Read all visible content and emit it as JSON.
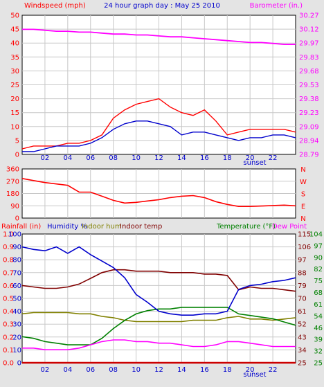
{
  "chart_data": [
    {
      "type": "line",
      "title": "24 hour graph day : May 25 2010",
      "ylabel": "Windspeed (mph)",
      "y2label": "Barometer (in.)",
      "ylim": [
        0,
        50
      ],
      "y_ticks": [
        "0",
        "5",
        "10",
        "15",
        "20",
        "25",
        "30",
        "35",
        "40",
        "45",
        "50"
      ],
      "y2lim": [
        28.79,
        30.27
      ],
      "y2_ticks": [
        "28.79",
        "28.94",
        "29.09",
        "29.23",
        "29.38",
        "29.53",
        "29.68",
        "29.83",
        "29.97",
        "30.12",
        "30.27"
      ],
      "x_ticks": [
        "02",
        "04",
        "06",
        "08",
        "10",
        "12",
        "14",
        "16",
        "18",
        "20",
        "22"
      ],
      "sunset_label": "sunset",
      "colors": {
        "gust": "#ff0000",
        "speed": "#0000cc",
        "barometer": "#ff00ff",
        "axis_left": "#ff0000",
        "axis_right": "#ff00ff"
      },
      "x": [
        0,
        1,
        2,
        3,
        4,
        5,
        6,
        7,
        8,
        9,
        10,
        11,
        12,
        13,
        14,
        15,
        16,
        17,
        18,
        19,
        20,
        21,
        22,
        23,
        24
      ],
      "series": [
        {
          "name": "gust",
          "values": [
            2,
            3,
            3,
            3,
            4,
            4,
            5,
            7,
            13,
            16,
            18,
            19,
            20,
            17,
            15,
            14,
            16,
            12,
            7,
            8,
            9,
            9,
            9,
            9,
            8
          ]
        },
        {
          "name": "speed",
          "values": [
            1,
            1,
            2,
            3,
            3,
            3,
            4,
            6,
            9,
            11,
            12,
            12,
            11,
            10,
            7,
            8,
            8,
            7,
            6,
            5,
            6,
            6,
            7,
            7,
            6
          ]
        },
        {
          "name": "barometer",
          "values": [
            30.12,
            30.12,
            30.11,
            30.1,
            30.1,
            30.09,
            30.09,
            30.08,
            30.07,
            30.07,
            30.06,
            30.06,
            30.05,
            30.04,
            30.04,
            30.03,
            30.02,
            30.01,
            30.0,
            29.99,
            29.98,
            29.98,
            29.97,
            29.96,
            29.96
          ]
        }
      ]
    },
    {
      "type": "line",
      "ylim": [
        0,
        360
      ],
      "y_ticks": [
        "0",
        "90",
        "180",
        "270",
        "360"
      ],
      "compass_labels": [
        "N",
        "W",
        "S",
        "E",
        "N"
      ],
      "colors": {
        "direction": "#ff0000"
      },
      "x": [
        0,
        1,
        2,
        3,
        4,
        5,
        6,
        7,
        8,
        9,
        10,
        11,
        12,
        13,
        14,
        15,
        16,
        17,
        18,
        19,
        20,
        21,
        22,
        23,
        24
      ],
      "series": [
        {
          "name": "direction",
          "values": [
            290,
            275,
            260,
            250,
            240,
            190,
            190,
            160,
            130,
            110,
            115,
            125,
            135,
            150,
            160,
            165,
            150,
            120,
            100,
            85,
            85,
            88,
            92,
            95,
            90
          ]
        }
      ]
    },
    {
      "type": "line",
      "legend_labels": {
        "rainfall": "Rainfall (in)",
        "humidity": "Humidity %",
        "indoor_hum": "Indoor hum",
        "indoor_temp": "Indoor temp",
        "temperature": "Temperature (°F)",
        "dew_point": "Dew Point"
      },
      "ylim_rain": [
        0,
        1
      ],
      "rain_ticks": [
        "0.0",
        "0.1",
        "0.2",
        "0.3",
        "0.4",
        "0.5",
        "0.6",
        "0.7",
        "0.8",
        "0.9",
        "1.0"
      ],
      "ylim_hum": [
        0,
        100
      ],
      "hum_ticks": [
        "0",
        "10",
        "20",
        "30",
        "40",
        "50",
        "60",
        "70",
        "80",
        "90",
        "100"
      ],
      "ylim_indoor_temp": [
        25,
        115
      ],
      "indoor_temp_ticks": [
        "25",
        "34",
        "43",
        "52",
        "61",
        "70",
        "79",
        "88",
        "97",
        "106",
        "115"
      ],
      "ylim_temp": [
        25,
        104
      ],
      "temp_ticks": [
        "25",
        "32",
        "39",
        "46",
        "54",
        "61",
        "68",
        "75",
        "82",
        "90",
        "97",
        "104"
      ],
      "x_ticks": [
        "02",
        "04",
        "06",
        "08",
        "10",
        "12",
        "14",
        "16",
        "18",
        "20",
        "22"
      ],
      "sunset_label": "sunset",
      "colors": {
        "rainfall": "#cc0000",
        "humidity": "#0000cc",
        "indoor_hum": "#808000",
        "indoor_temp": "#800000",
        "temperature": "#008000",
        "dew_point": "#ff00ff",
        "axis_left": "#ff0000",
        "axis_right_1": "#800000",
        "axis_right_2": "#008000"
      },
      "x": [
        0,
        1,
        2,
        3,
        4,
        5,
        6,
        7,
        8,
        9,
        10,
        11,
        12,
        13,
        14,
        15,
        16,
        17,
        18,
        19,
        20,
        21,
        22,
        23,
        24
      ],
      "series": [
        {
          "name": "Rainfall (in)",
          "values": [
            0,
            0,
            0,
            0,
            0,
            0,
            0,
            0,
            0,
            0,
            0,
            0,
            0,
            0,
            0,
            0,
            0,
            0,
            0,
            0,
            0,
            0,
            0,
            0,
            0
          ]
        },
        {
          "name": "Humidity %",
          "values": [
            90,
            88,
            87,
            90,
            85,
            90,
            84,
            79,
            74,
            66,
            53,
            47,
            40,
            38,
            37,
            37,
            38,
            38,
            40,
            57,
            60,
            61,
            63,
            64,
            66
          ]
        },
        {
          "name": "Indoor hum",
          "values": [
            38,
            39,
            39,
            39,
            39,
            38,
            38,
            36,
            35,
            33,
            32,
            32,
            32,
            32,
            32,
            33,
            33,
            33,
            35,
            36,
            34,
            34,
            33,
            34,
            35
          ]
        },
        {
          "name": "Indoor temp",
          "values": [
            79,
            78,
            77,
            77,
            78,
            80,
            84,
            88,
            90,
            90,
            89,
            89,
            89,
            88,
            88,
            88,
            87,
            87,
            86,
            76,
            78,
            77,
            77,
            76,
            75
          ]
        },
        {
          "name": "Temperature (°F)",
          "values": [
            41,
            40,
            38,
            37,
            36,
            36,
            36,
            40,
            46,
            51,
            55,
            57,
            58,
            58,
            59,
            59,
            59,
            59,
            59,
            55,
            54,
            53,
            52,
            50,
            48
          ]
        },
        {
          "name": "Dew Point",
          "values": [
            34,
            34,
            33,
            33,
            33,
            34,
            36,
            38,
            39,
            39,
            38,
            38,
            37,
            37,
            36,
            35,
            35,
            36,
            38,
            38,
            37,
            36,
            35,
            35,
            35
          ]
        }
      ]
    }
  ]
}
